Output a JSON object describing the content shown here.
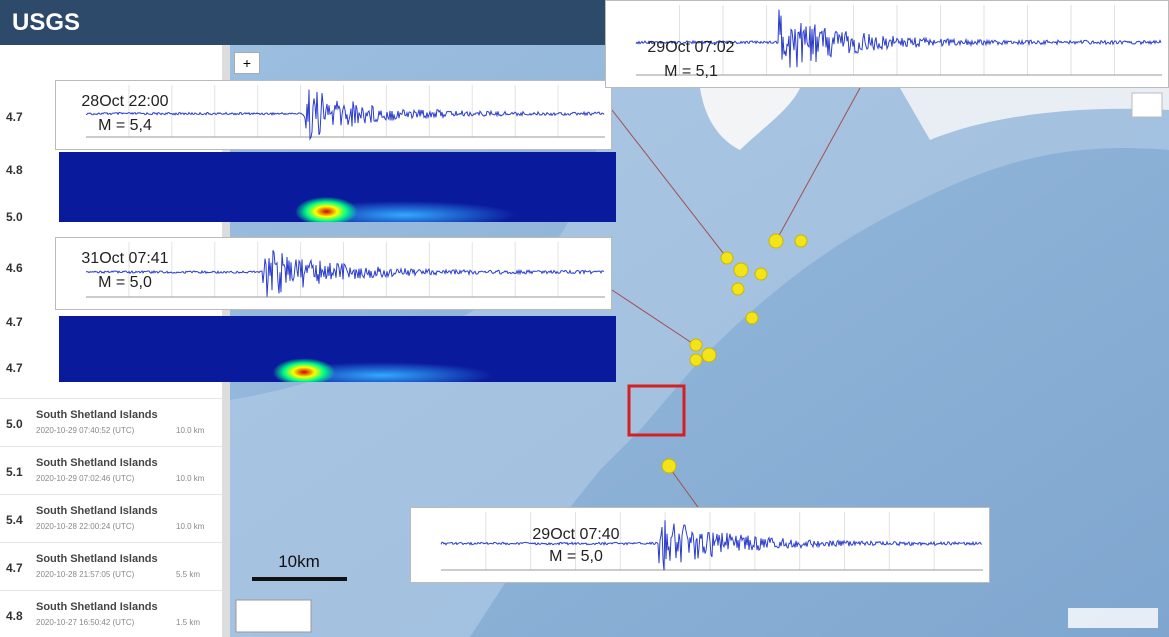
{
  "header": {
    "title": "USGS",
    "tab_button": "+"
  },
  "event_list": {
    "magnitudes_top": [
      "4.7",
      "4.8",
      "5.0",
      "4.6",
      "4.7",
      "4.7"
    ],
    "items": [
      {
        "magnitude": "5.0",
        "place": "South Shetland Islands",
        "time": "2020-10-29 07:40:52 (UTC)",
        "depth": "10.0 km"
      },
      {
        "magnitude": "5.1",
        "place": "South Shetland Islands",
        "time": "2020-10-29 07:02:46 (UTC)",
        "depth": "10.0 km"
      },
      {
        "magnitude": "5.4",
        "place": "South Shetland Islands",
        "time": "2020-10-28 22:00:24 (UTC)",
        "depth": "10.0 km"
      },
      {
        "magnitude": "4.7",
        "place": "South Shetland Islands",
        "time": "2020-10-28 21:57:05 (UTC)",
        "depth": "5.5 km"
      },
      {
        "magnitude": "4.8",
        "place": "South Shetland Islands",
        "time": "2020-10-27 16:50:42 (UTC)",
        "depth": "1.5 km"
      }
    ]
  },
  "seismograms": [
    {
      "date": "28Oct 22:00",
      "magnitude": "M = 5,4"
    },
    {
      "date": "31Oct 07:41",
      "magnitude": "M = 5,0"
    },
    {
      "date": "29Oct 07:02",
      "magnitude": "M = 5,1"
    },
    {
      "date": "29Oct 07:40",
      "magnitude": "M = 5,0"
    }
  ],
  "map": {
    "scale_label": "10km"
  }
}
